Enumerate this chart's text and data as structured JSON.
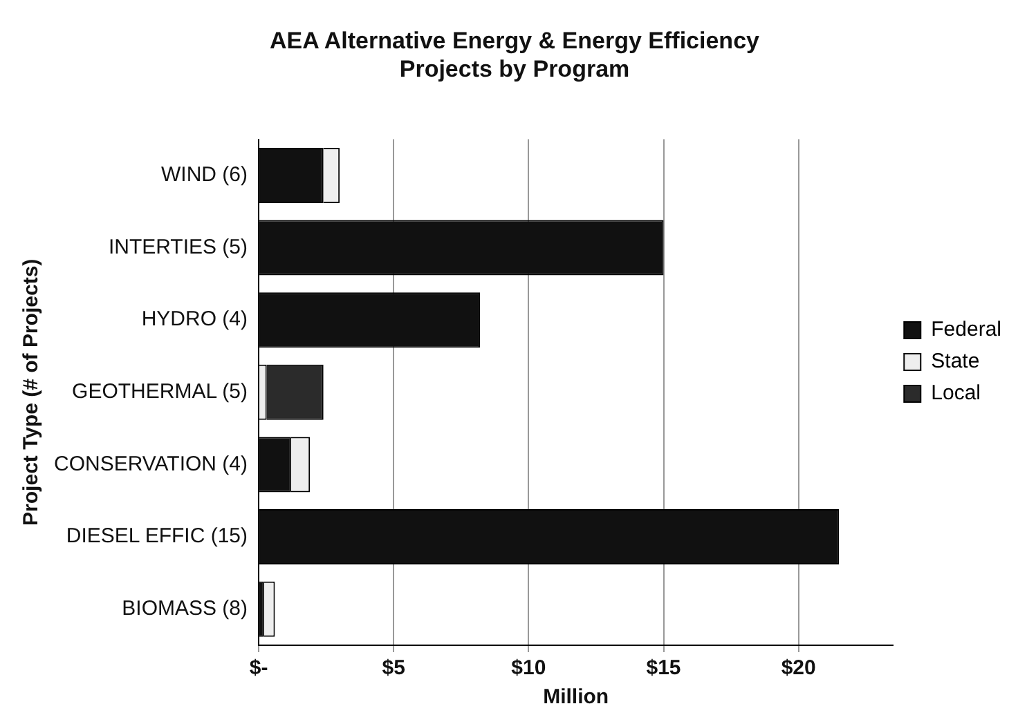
{
  "chart_data": {
    "type": "bar",
    "orientation": "horizontal",
    "stacked": true,
    "title": "AEA Alternative Energy & Energy Efficiency Projects by Program",
    "xlabel": "Million",
    "ylabel": "Project Type (# of Projects)",
    "categories": [
      "WIND (6)",
      "INTERTIES (5)",
      "HYDRO (4)",
      "GEOTHERMAL (5)",
      "CONSERVATION (4)",
      "DIESEL EFFIC (15)",
      "BIOMASS (8)"
    ],
    "series": [
      {
        "name": "Federal",
        "color": "#111111",
        "values": [
          2.4,
          15.0,
          8.2,
          0,
          1.2,
          21.5,
          0.2
        ]
      },
      {
        "name": "State",
        "color": "#eeeeee",
        "values": [
          0.6,
          0,
          0,
          0.3,
          0.7,
          0,
          0.4
        ]
      },
      {
        "name": "Local",
        "color": "#2b2b2b",
        "values": [
          0,
          0,
          0,
          2.1,
          0,
          0,
          0
        ]
      }
    ],
    "xlim": [
      0,
      23.5
    ],
    "xticks": [
      {
        "value": 0,
        "label": "$-"
      },
      {
        "value": 5,
        "label": "$5"
      },
      {
        "value": 10,
        "label": "$10"
      },
      {
        "value": 15,
        "label": "$15"
      },
      {
        "value": 20,
        "label": "$20"
      }
    ],
    "grid": "x",
    "legend": "right"
  }
}
